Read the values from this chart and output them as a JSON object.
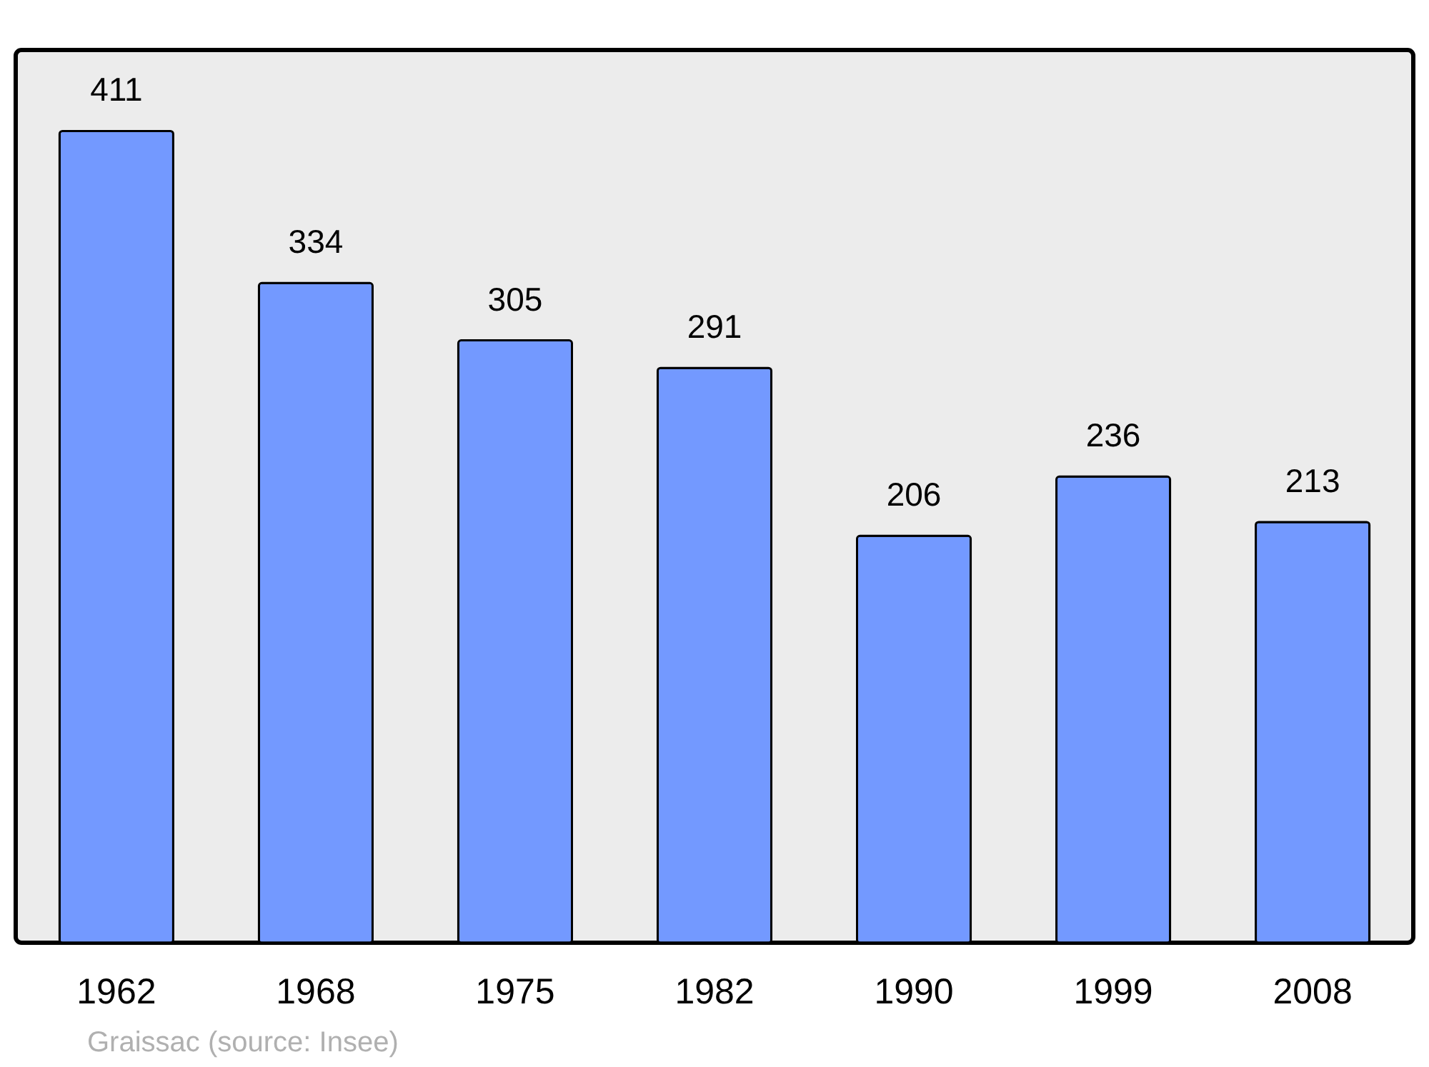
{
  "chart_data": {
    "type": "bar",
    "categories": [
      "1962",
      "1968",
      "1975",
      "1982",
      "1990",
      "1999",
      "2008"
    ],
    "values": [
      411,
      334,
      305,
      291,
      206,
      236,
      213
    ],
    "color": "#7399ff",
    "data_labels": true,
    "ylim": [
      0,
      452
    ],
    "tick_labels": "x",
    "annotations": [
      "Graissac    (source: Insee)"
    ]
  }
}
